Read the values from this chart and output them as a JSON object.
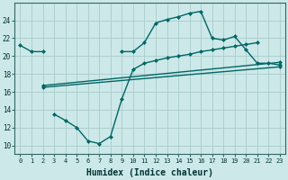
{
  "bg_color": "#cce8e8",
  "grid_color": "#aacccc",
  "line_color": "#006666",
  "line1_x": [
    0,
    1,
    2,
    9,
    10,
    11,
    12,
    13,
    14,
    15,
    16,
    17,
    18,
    19,
    20,
    21,
    22,
    23
  ],
  "line1_y": [
    21.2,
    20.5,
    20.5,
    20.5,
    20.5,
    21.5,
    23.7,
    24.1,
    24.4,
    24.8,
    25.0,
    22.0,
    21.8,
    22.2,
    20.7,
    19.2,
    19.2,
    19.0
  ],
  "line2_x": [
    2,
    23
  ],
  "line2_y": [
    16.7,
    19.3
  ],
  "line3_x": [
    2,
    23
  ],
  "line3_y": [
    16.5,
    18.8
  ],
  "line4_x": [
    3,
    4,
    5,
    6,
    7,
    8,
    9,
    10,
    11,
    12,
    13,
    14,
    15,
    16,
    17,
    18,
    19,
    20,
    21
  ],
  "line4_y": [
    13.5,
    12.8,
    12.0,
    10.5,
    10.2,
    11.0,
    15.2,
    18.5,
    19.2,
    19.5,
    19.8,
    20.0,
    20.2,
    20.5,
    20.7,
    20.9,
    21.1,
    21.3,
    21.5
  ],
  "xlabel": "Humidex (Indice chaleur)",
  "xlim": [
    -0.5,
    23.5
  ],
  "ylim": [
    9,
    26
  ],
  "yticks": [
    10,
    12,
    14,
    16,
    18,
    20,
    22,
    24
  ],
  "xticks": [
    0,
    1,
    2,
    3,
    4,
    5,
    6,
    7,
    8,
    9,
    10,
    11,
    12,
    13,
    14,
    15,
    16,
    17,
    18,
    19,
    20,
    21,
    22,
    23
  ]
}
